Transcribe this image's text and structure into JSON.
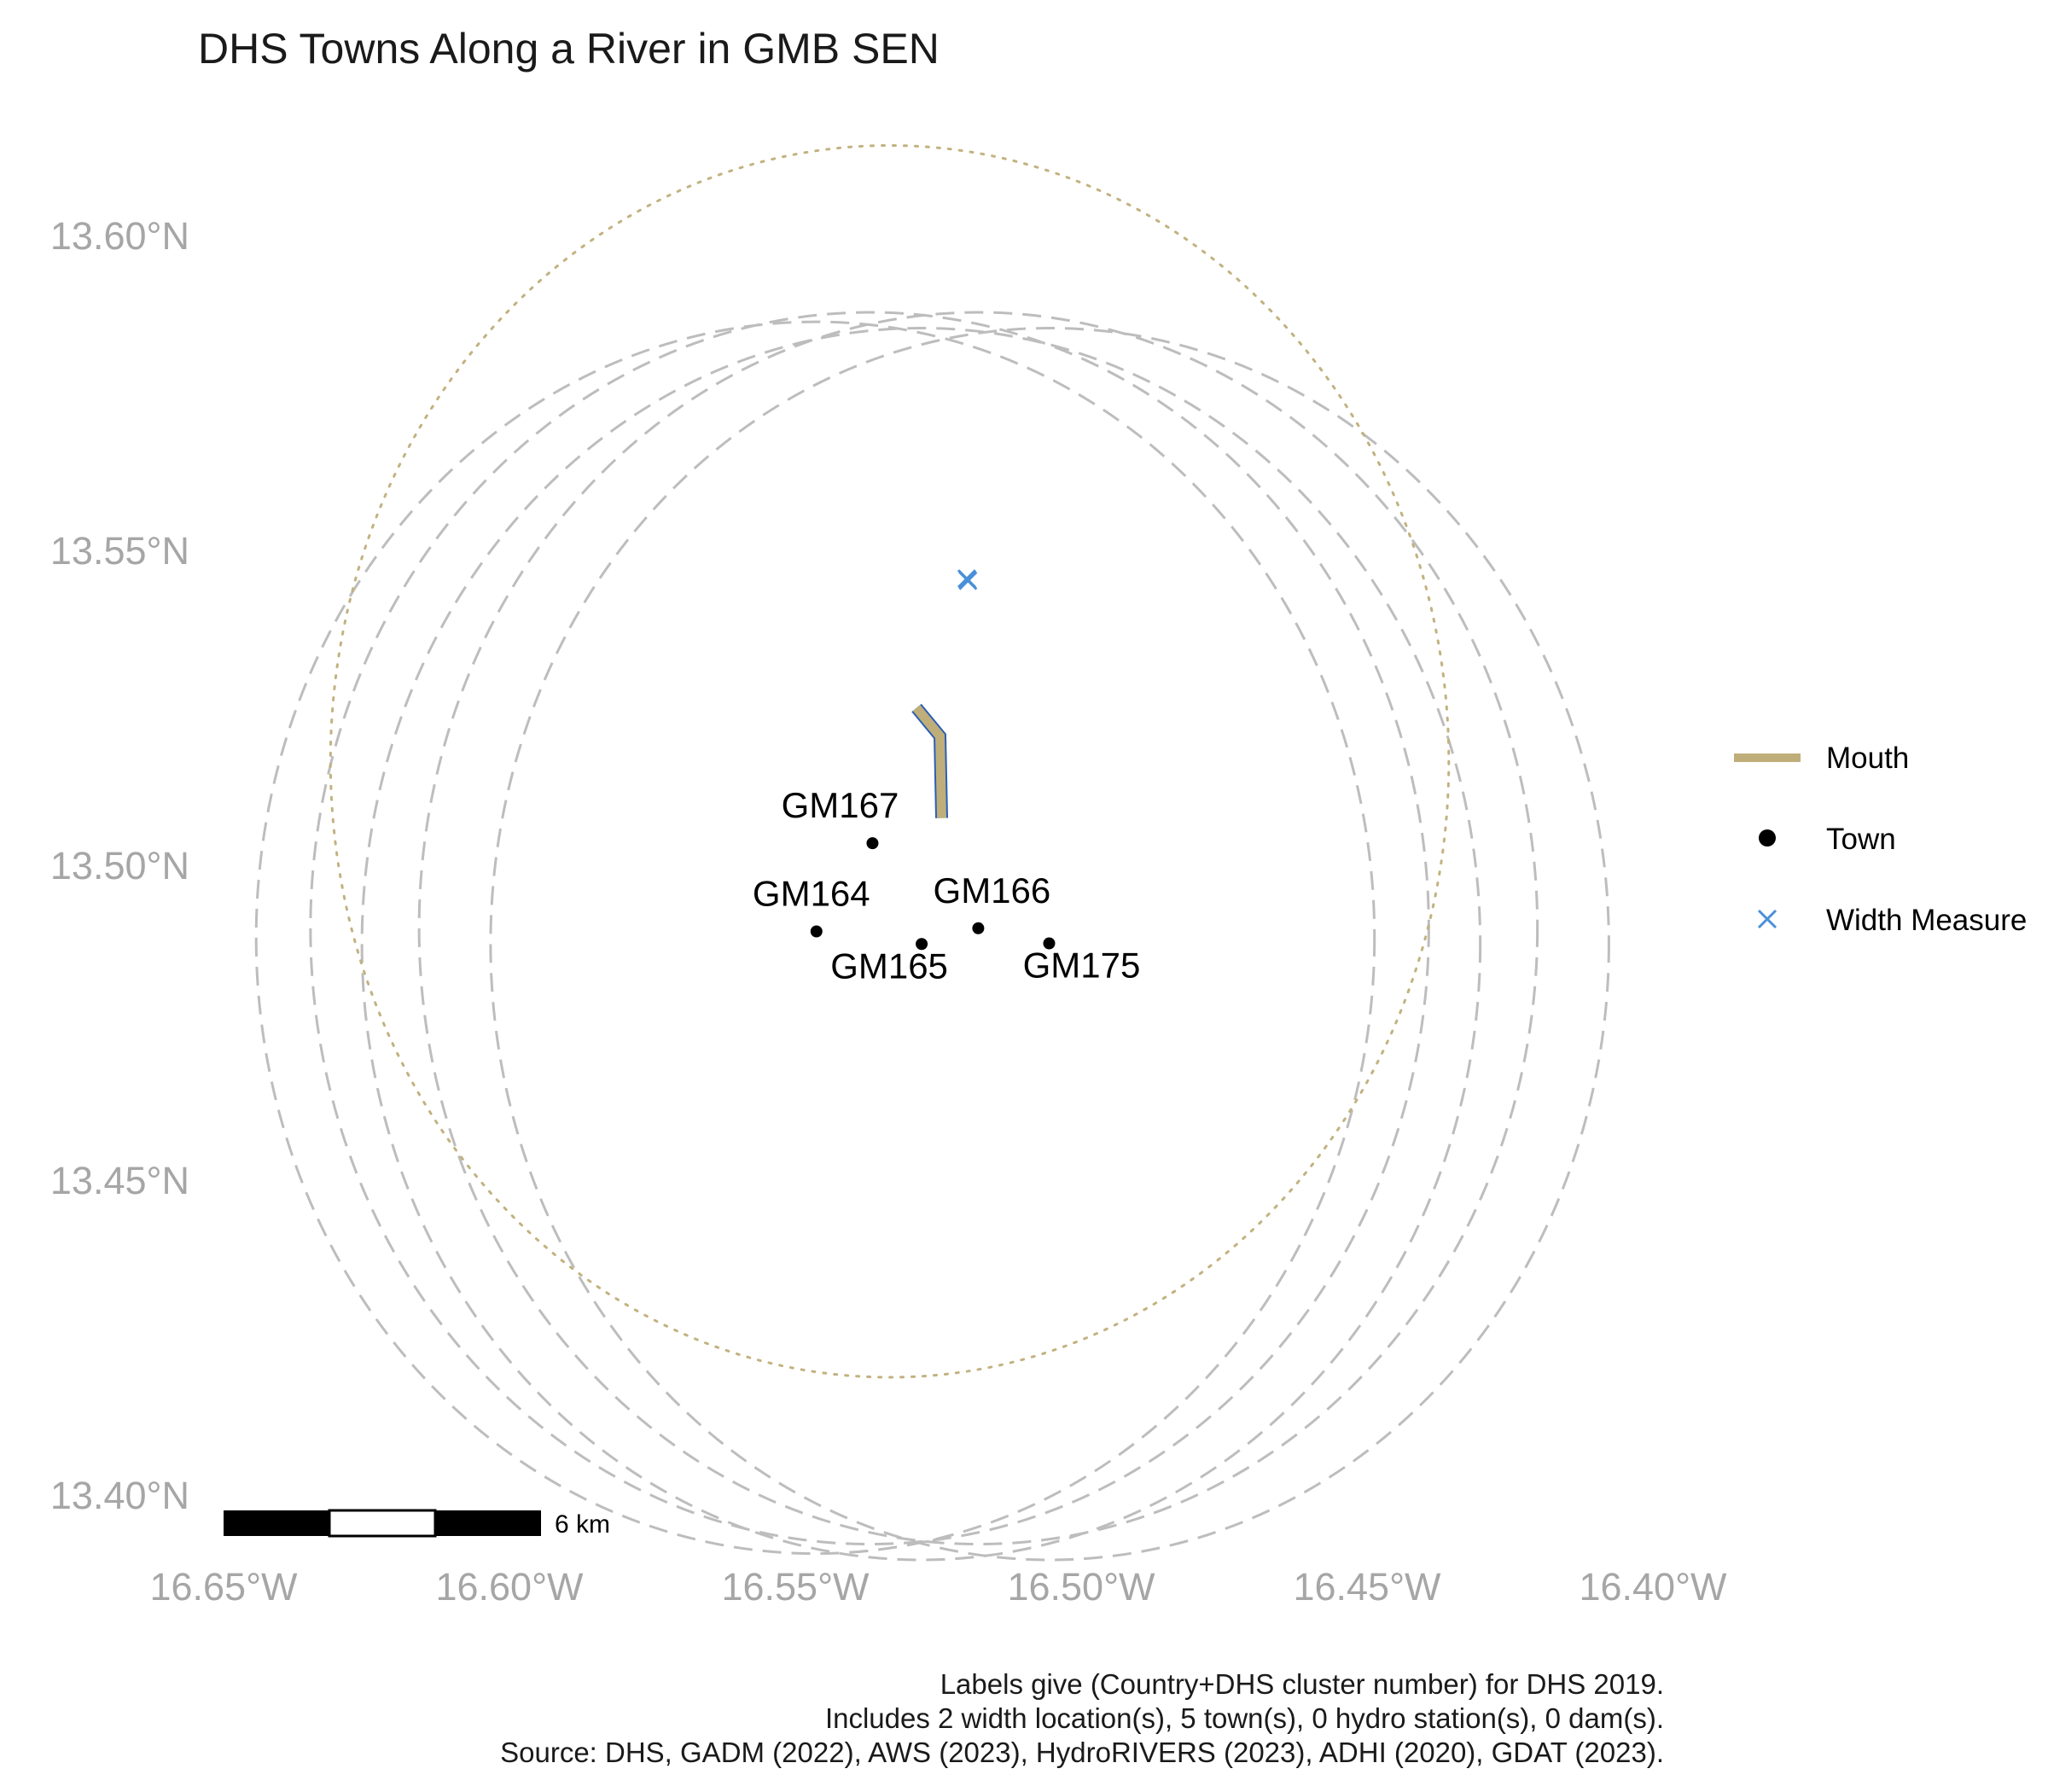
{
  "title": "DHS Towns Along a River in GMB SEN",
  "axes": {
    "x_ticks": [
      {
        "value": -16.65,
        "label": "16.65°W"
      },
      {
        "value": -16.6,
        "label": "16.60°W"
      },
      {
        "value": -16.55,
        "label": "16.55°W"
      },
      {
        "value": -16.5,
        "label": "16.50°W"
      },
      {
        "value": -16.45,
        "label": "16.45°W"
      },
      {
        "value": -16.4,
        "label": "16.40°W"
      }
    ],
    "y_ticks": [
      {
        "value": 13.6,
        "label": "13.60°N"
      },
      {
        "value": 13.55,
        "label": "13.55°N"
      },
      {
        "value": 13.5,
        "label": "13.50°N"
      },
      {
        "value": 13.45,
        "label": "13.45°N"
      },
      {
        "value": 13.4,
        "label": "13.40°N"
      }
    ],
    "xlim": [
      -16.65,
      -16.4
    ],
    "ylim": [
      13.4,
      13.6
    ]
  },
  "towns": [
    {
      "label": "GM167",
      "lon": -16.5365,
      "lat": 13.5035
    },
    {
      "label": "GM164",
      "lon": -16.5463,
      "lat": 13.4895
    },
    {
      "label": "GM165",
      "lon": -16.5279,
      "lat": 13.4875
    },
    {
      "label": "GM166",
      "lon": -16.518,
      "lat": 13.49
    },
    {
      "label": "GM175",
      "lon": -16.5056,
      "lat": 13.4876
    }
  ],
  "width_measures": [
    {
      "lon": -16.52,
      "lat": 13.5455
    },
    {
      "lon": -16.5198,
      "lat": 13.5452
    }
  ],
  "mouth": {
    "coords": [
      [
        -16.5288,
        13.525
      ],
      [
        -16.5247,
        13.5205
      ],
      [
        -16.5244,
        13.5075
      ]
    ],
    "color": "#bfae7a",
    "outline": "#2b5fb4"
  },
  "buffer_circles": [
    {
      "lon": -16.537,
      "lat": 13.49,
      "radius_deg": 0.0978
    },
    {
      "lon": -16.5465,
      "lat": 13.4885,
      "radius_deg": 0.0978
    },
    {
      "lon": -16.528,
      "lat": 13.4875,
      "radius_deg": 0.0978
    },
    {
      "lon": -16.518,
      "lat": 13.49,
      "radius_deg": 0.0978
    },
    {
      "lon": -16.5055,
      "lat": 13.4875,
      "radius_deg": 0.0978
    }
  ],
  "mouth_circle": {
    "lon": -16.5335,
    "lat": 13.5165,
    "radius_deg": 0.0978
  },
  "legend": {
    "position": "right",
    "items": [
      {
        "label": "Mouth",
        "kind": "line",
        "color": "#bfae7a"
      },
      {
        "label": "Town",
        "kind": "point",
        "color": "#000000"
      },
      {
        "label": "Width Measure",
        "kind": "cross",
        "color": "#4a90d9"
      }
    ]
  },
  "scale_bar": {
    "label": "6 km"
  },
  "caption": [
    "Labels give (Country+DHS cluster number) for DHS 2019.",
    "Includes 2 width location(s), 5 town(s), 0 hydro station(s), 0 dam(s).",
    "Source: DHS, GADM (2022), AWS (2023), HydroRIVERS (2023), ADHI (2020), GDAT (2023)."
  ],
  "colors": {
    "buffer": "#bdbdbd",
    "mouth_buffer": "#c2b280",
    "axis_text": "#a6a6a6"
  }
}
